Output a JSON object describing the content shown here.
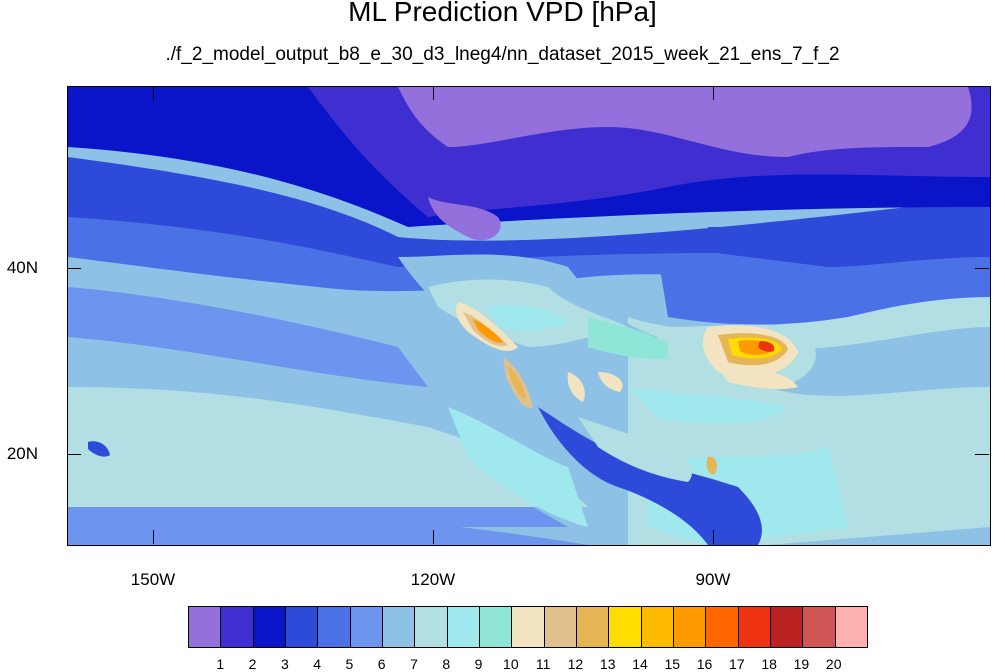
{
  "title": "ML Prediction VPD [hPa]",
  "subtitle": "./f_2_model_output_b8_e_30_d3_lneg4/nn_dataset_2015_week_21_ens_7_f_2",
  "axes": {
    "lat_labels": [
      "40N",
      "20N"
    ],
    "lon_labels": [
      "150W",
      "120W",
      "90W"
    ]
  },
  "colorbar": {
    "labels": [
      "1",
      "2",
      "3",
      "4",
      "5",
      "6",
      "7",
      "8",
      "9",
      "10",
      "11",
      "12",
      "13",
      "14",
      "15",
      "16",
      "17",
      "18",
      "19",
      "20"
    ],
    "colors": [
      "#9370db",
      "#3f2fd0",
      "#0a14c8",
      "#2e4ad8",
      "#4a72e6",
      "#6d94ee",
      "#8dc2e6",
      "#b1dfe3",
      "#9fe8ee",
      "#8fe6d6",
      "#f2e4c0",
      "#e0c08c",
      "#e6b656",
      "#ffdd00",
      "#ffbb00",
      "#ff9900",
      "#ff6600",
      "#ee3311",
      "#bb2222",
      "#d05555",
      "#ffb0b0"
    ]
  },
  "map_colors": {
    "bg": "#8dc2e6",
    "lvl1": "#9370db",
    "lvl2": "#3f2fd0",
    "lvl3": "#0a14c8",
    "lvl4": "#2e4ad8",
    "lvl5": "#4a72e6",
    "lvl6": "#6d94ee",
    "lvl7": "#8dc2e6",
    "lvl8": "#b1dfe3",
    "lvl9": "#9fe8ee",
    "lvl10": "#8fe6d6",
    "lvl11": "#f2e4c0",
    "lvl12": "#e0c08c",
    "lvl13": "#e6b656",
    "lvl14": "#ffdd00",
    "lvl16": "#ff9900",
    "lvl18": "#ee3311"
  }
}
